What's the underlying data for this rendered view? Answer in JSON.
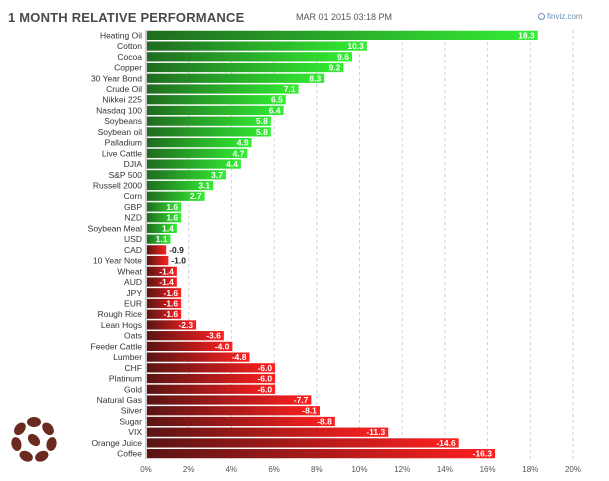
{
  "header": {
    "title": "1 MONTH RELATIVE PERFORMANCE",
    "timestamp": "MAR 01 2015 03:18 PM",
    "brand": "finviz.com"
  },
  "colors": {
    "positive_light": "#33ee33",
    "positive_dark": "#1f6b1f",
    "negative_dark": "#5a1414",
    "negative_light": "#ff2020",
    "grid": "#cfcfcf",
    "label": "#333333",
    "logo": "#6b2a1f"
  },
  "chart_data": {
    "type": "bar",
    "orientation": "horizontal",
    "title": "1 MONTH RELATIVE PERFORMANCE",
    "categories": [
      "Heating Oil",
      "Cotton",
      "Cocoa",
      "Copper",
      "30 Year Bond",
      "Crude Oil",
      "Nikkei 225",
      "Nasdaq 100",
      "Soybeans",
      "Soybean oil",
      "Palladium",
      "Live Cattle",
      "DJIA",
      "S&P 500",
      "Russell 2000",
      "Corn",
      "GBP",
      "NZD",
      "Soybean Meal",
      "USD",
      "CAD",
      "10 Year Note",
      "Wheat",
      "AUD",
      "JPY",
      "EUR",
      "Rough Rice",
      "Lean Hogs",
      "Oats",
      "Feeder Cattle",
      "Lumber",
      "CHF",
      "Platinum",
      "Gold",
      "Natural Gas",
      "Silver",
      "Sugar",
      "VIX",
      "Orange Juice",
      "Coffee"
    ],
    "values": [
      18.3,
      10.3,
      9.6,
      9.2,
      8.3,
      7.1,
      6.5,
      6.4,
      5.8,
      5.8,
      4.9,
      4.7,
      4.4,
      3.7,
      3.1,
      2.7,
      1.6,
      1.6,
      1.4,
      1.1,
      -0.9,
      -1.0,
      -1.4,
      -1.4,
      -1.6,
      -1.6,
      -1.6,
      -2.3,
      -3.6,
      -4.0,
      -4.8,
      -6.0,
      -6.0,
      -6.0,
      -7.7,
      -8.1,
      -8.8,
      -11.3,
      -14.6,
      -16.3
    ],
    "value_labels": [
      "18.3",
      "10.3",
      "9.6",
      "9.2",
      "8.3",
      "7.1",
      "6.5",
      "6.4",
      "5.8",
      "5.8",
      "4.9",
      "4.7",
      "4.4",
      "3.7",
      "3.1",
      "2.7",
      "1.6",
      "1.6",
      "1.4",
      "1.1",
      "-0.9",
      "-1.0",
      "-1.4",
      "-1.4",
      "-1.6",
      "-1.6",
      "-1.6",
      "-2.3",
      "-3.6",
      "-4.0",
      "-4.8",
      "-6.0",
      "-6.0",
      "-6.0",
      "-7.7",
      "-8.1",
      "-8.8",
      "-11.3",
      "-14.6",
      "-16.3"
    ],
    "xlim": [
      0,
      20
    ],
    "xticks": [
      0,
      2,
      4,
      6,
      8,
      10,
      12,
      14,
      16,
      18,
      20
    ],
    "xtick_labels": [
      "0%",
      "2%",
      "4%",
      "6%",
      "8%",
      "10%",
      "12%",
      "14%",
      "16%",
      "18%",
      "20%"
    ],
    "bar_length": "absolute value",
    "grid": true
  }
}
